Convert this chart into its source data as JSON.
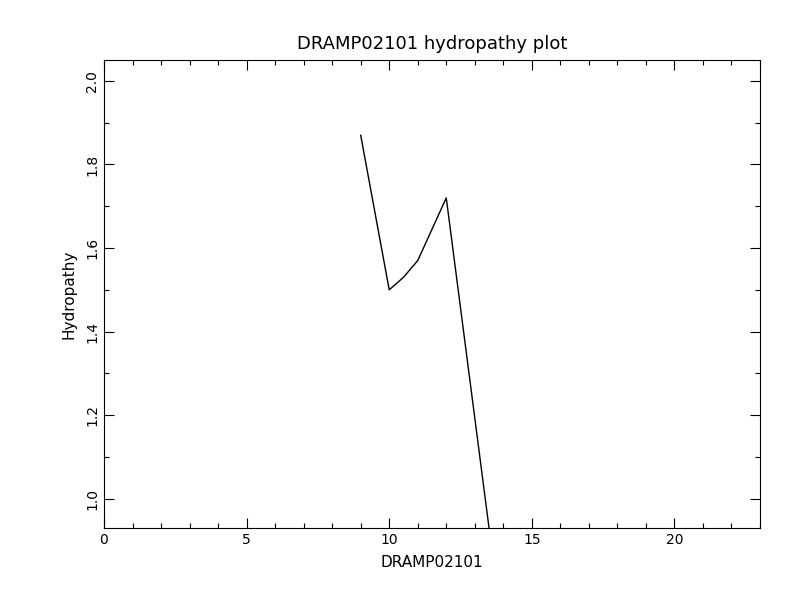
{
  "title": "DRAMP02101 hydropathy plot",
  "xlabel": "DRAMP02101",
  "ylabel": "Hydropathy",
  "x": [
    9.0,
    10.0,
    10.5,
    11.0,
    12.0,
    13.5
  ],
  "y": [
    1.87,
    1.5,
    1.53,
    1.57,
    1.72,
    0.93
  ],
  "xlim": [
    0,
    23
  ],
  "ylim": [
    0.93,
    2.05
  ],
  "xticks": [
    0,
    5,
    10,
    15,
    20
  ],
  "yticks": [
    1.0,
    1.2,
    1.4,
    1.6,
    1.8,
    2.0
  ],
  "line_color": "#000000",
  "background_color": "#ffffff",
  "line_width": 1.0,
  "title_fontsize": 13,
  "label_fontsize": 11,
  "tick_fontsize": 10
}
